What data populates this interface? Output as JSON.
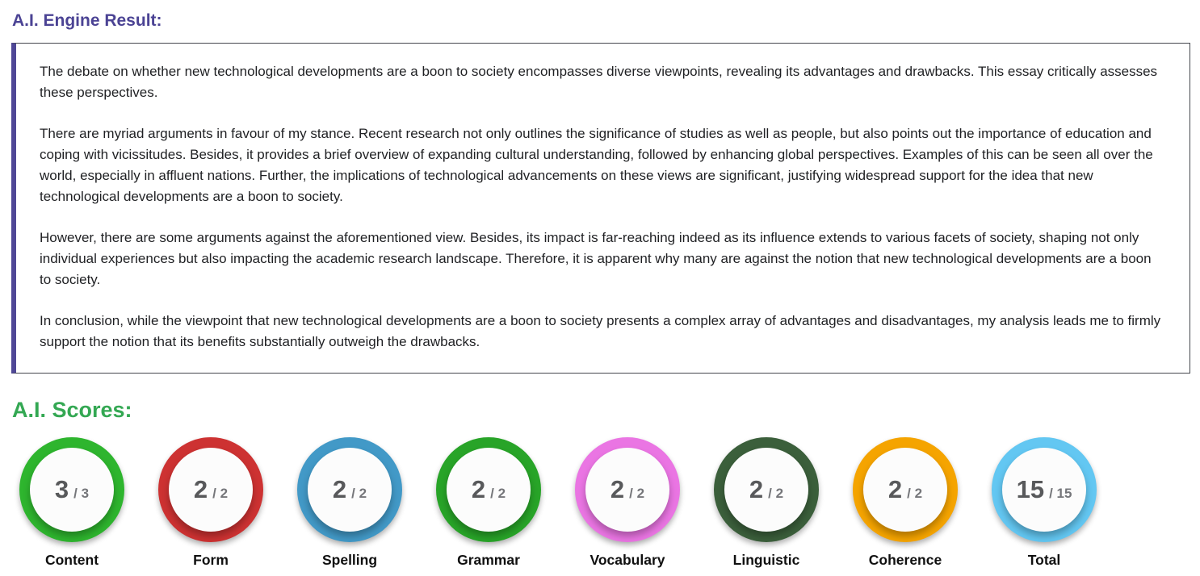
{
  "engine_result": {
    "title": "A.I. Engine Result:",
    "paragraphs": [
      "The debate on whether new technological developments are a boon to society encompasses diverse viewpoints, revealing its advantages and drawbacks. This essay critically assesses these perspectives.",
      "There are myriad arguments in favour of my stance. Recent research not only outlines the significance of studies as well as people, but also points out the importance of education and coping with vicissitudes. Besides, it provides a brief overview of expanding cultural understanding, followed by enhancing global perspectives. Examples of this can be seen all over the world, especially in affluent nations. Further, the implications of technological advancements on these views are significant, justifying widespread support for the idea that new technological developments are a boon to society.",
      "However, there are some arguments against the aforementioned view. Besides, its impact is far-reaching indeed as its influence extends to various facets of society, shaping not only individual experiences but also impacting the academic research landscape. Therefore, it is apparent why many are against the notion that new technological developments are a boon to society.",
      "In conclusion, while the viewpoint that new technological developments are a boon to society presents a complex array of advantages and disadvantages, my analysis leads me to firmly support the notion that its benefits substantially outweigh the drawbacks."
    ]
  },
  "scores": {
    "title": "A.I. Scores:",
    "items": [
      {
        "label": "Content",
        "value": "3",
        "max_label": "/ 3",
        "ring_color": "#2eb52e"
      },
      {
        "label": "Form",
        "value": "2",
        "max_label": "/ 2",
        "ring_color": "#cd3232"
      },
      {
        "label": "Spelling",
        "value": "2",
        "max_label": "/ 2",
        "ring_color": "#4299c7"
      },
      {
        "label": "Grammar",
        "value": "2",
        "max_label": "/ 2",
        "ring_color": "#28a428"
      },
      {
        "label": "Vocabulary",
        "value": "2",
        "max_label": "/ 2",
        "ring_color": "#ea75e3"
      },
      {
        "label": "Linguistic",
        "value": "2",
        "max_label": "/ 2",
        "ring_color": "#3b5f3b"
      },
      {
        "label": "Coherence",
        "value": "2",
        "max_label": "/ 2",
        "ring_color": "#f5a400"
      },
      {
        "label": "Total",
        "value": "15",
        "max_label": "/ 15",
        "ring_color": "#63c7f2"
      }
    ]
  },
  "colors": {
    "engine_title_purple": "#4b4394",
    "accent_bar_purple": "#4f4796",
    "scores_title_green": "#34a853",
    "box_border_gray": "#44464d"
  }
}
